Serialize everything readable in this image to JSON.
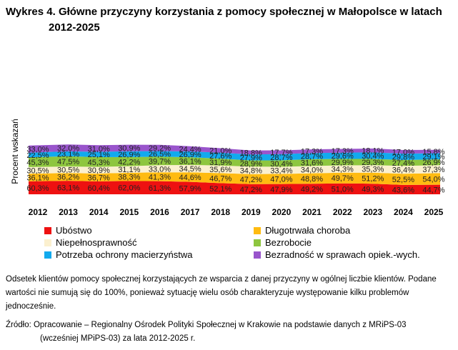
{
  "title_line1": "Wykres 4. Główne przyczyny korzystania z pomocy społecznej w Małopolsce w latach",
  "title_line2": "2012-2025",
  "chart_data": {
    "type": "area",
    "title": "Wykres 4. Główne przyczyny korzystania z pomocy społecznej w Małopolsce w latach 2012-2025",
    "ylabel": "Procent wskazań",
    "xlabel": "",
    "x": [
      "2012",
      "2013",
      "2014",
      "2015",
      "2016",
      "2017",
      "2018",
      "2019",
      "2020",
      "2021",
      "2022",
      "2023",
      "2024",
      "2025"
    ],
    "stacked": true,
    "series": [
      {
        "name": "Ubóstwo",
        "color": "#ee1111",
        "values": [
          60.3,
          63.1,
          60.4,
          62.0,
          61.3,
          57.9,
          52.1,
          47.2,
          47.9,
          49.2,
          51.0,
          49.3,
          43.6,
          44.7
        ]
      },
      {
        "name": "Długotrwała choroba",
        "color": "#ffbb11",
        "values": [
          36.1,
          36.2,
          36.7,
          38.3,
          41.3,
          44.6,
          46.7,
          47.2,
          47.0,
          48.8,
          49.7,
          51.2,
          52.5,
          54.0
        ]
      },
      {
        "name": "Niepełnosprawność",
        "color": "#fbf0cf",
        "values": [
          30.5,
          30.5,
          30.9,
          31.1,
          33.0,
          34.5,
          35.6,
          34.8,
          33.4,
          34.0,
          34.3,
          35.3,
          36.4,
          37.3
        ]
      },
      {
        "name": "Bezrobocie",
        "color": "#8ec63f",
        "values": [
          45.3,
          47.5,
          45.3,
          42.2,
          39.7,
          36.1,
          31.9,
          28.9,
          30.4,
          31.6,
          29.9,
          29.3,
          27.4,
          26.9
        ]
      },
      {
        "name": "Potrzeba ochrony macierzyństwa",
        "color": "#12aaee",
        "values": [
          22.5,
          23.1,
          25.1,
          26.9,
          26.5,
          26.9,
          27.6,
          27.9,
          28.7,
          28.7,
          29.6,
          30.4,
          29.8,
          29.1
        ]
      },
      {
        "name": "Bezradność w sprawach opiek.-wych.",
        "color": "#9955cc",
        "values": [
          33.0,
          32.0,
          31.0,
          30.9,
          29.2,
          24.4,
          21.0,
          18.8,
          17.7,
          17.3,
          17.3,
          18.1,
          17.0,
          15.8
        ]
      }
    ],
    "legend_position": "bottom",
    "grid": false
  },
  "legend": [
    {
      "label": "Ubóstwo",
      "color": "#ee1111"
    },
    {
      "label": "Długotrwała choroba",
      "color": "#ffbb11"
    },
    {
      "label": "Niepełnosprawność",
      "color": "#fbf0cf"
    },
    {
      "label": "Bezrobocie",
      "color": "#8ec63f"
    },
    {
      "label": "Potrzeba ochrony macierzyństwa",
      "color": "#12aaee"
    },
    {
      "label": "Bezradność w sprawach opiek.-wych.",
      "color": "#9955cc"
    }
  ],
  "note": "Odsetek klientów pomocy społecznej korzystających ze wsparcia z danej przyczyny w ogólnej liczbie klientów. Podane wartości nie sumują się do 100%, ponieważ sytuację wielu osób charakteryzuje występowanie kilku problemów jednocześnie.",
  "source_line1": "Źródło: Opracowanie – Regionalny Ośrodek Polityki Społecznej w Krakowie na podstawie danych z MRiPS-03",
  "source_line2": "(wcześniej MPiPS-03) za lata 2012-2025 r."
}
